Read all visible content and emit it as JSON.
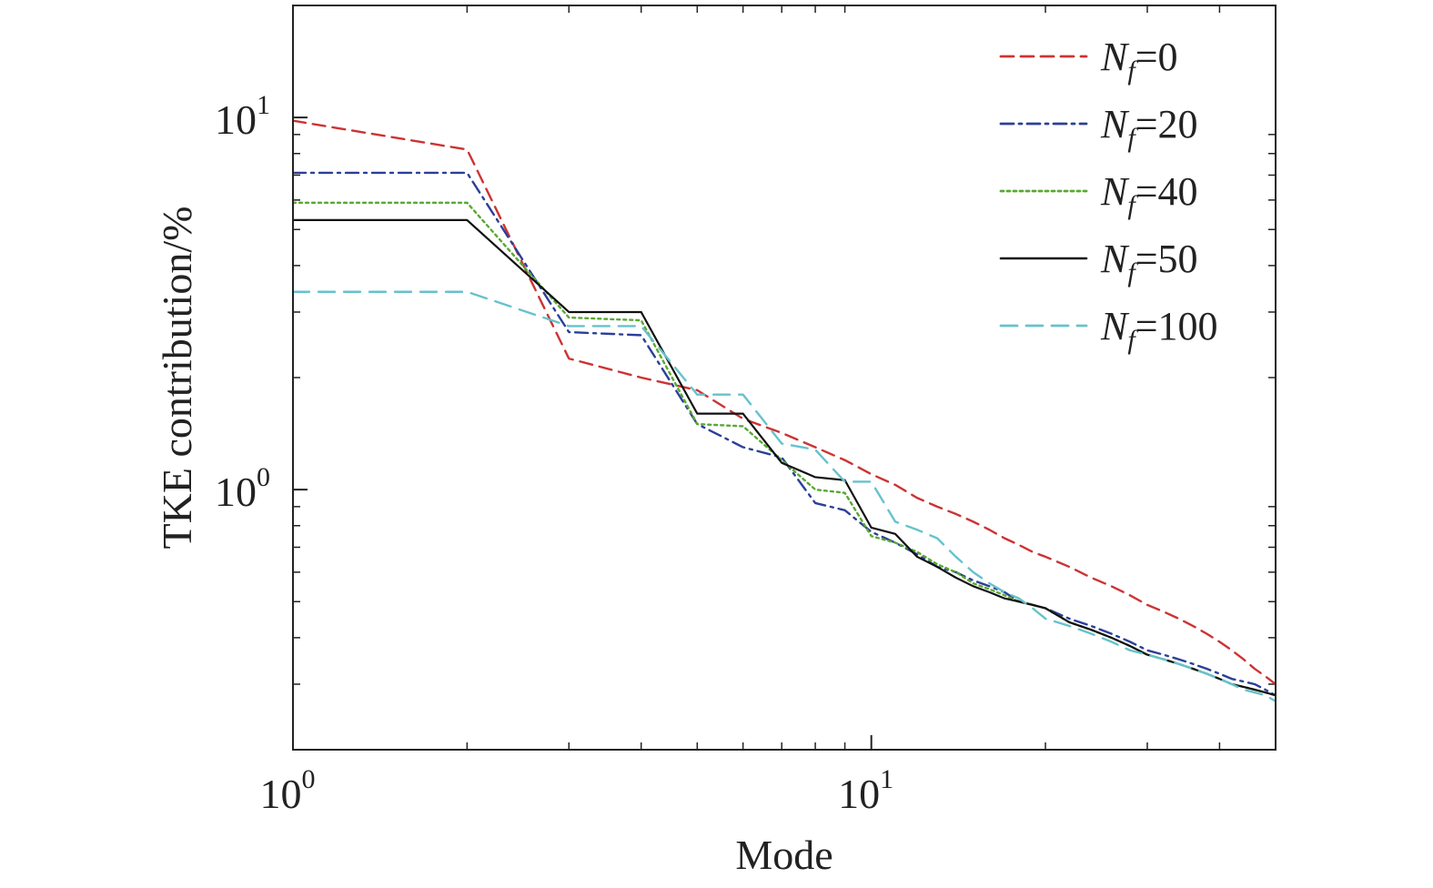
{
  "chart_data": {
    "type": "line",
    "title": "",
    "xlabel": "Mode",
    "ylabel": "TKE contribution/%",
    "xscale": "log",
    "yscale": "log",
    "xlim": [
      1,
      50
    ],
    "ylim": [
      0.2,
      20
    ],
    "x_ticks": [
      {
        "value": 1,
        "base": "10",
        "exp": "0"
      },
      {
        "value": 10,
        "base": "10",
        "exp": "1"
      }
    ],
    "y_ticks": [
      {
        "value": 1,
        "base": "10",
        "exp": "0"
      },
      {
        "value": 10,
        "base": "10",
        "exp": "1"
      }
    ],
    "legend_position": "top-right",
    "series": [
      {
        "name": "N_f=0",
        "label_main": "N",
        "label_sub": "f",
        "label_value": "=0",
        "color": "#cc3333",
        "dash": "dashed",
        "x": [
          1,
          2,
          3,
          4,
          5,
          6,
          7,
          8,
          9,
          10,
          11,
          12,
          13,
          14,
          15,
          16,
          17,
          18,
          19,
          20,
          22,
          24,
          26,
          28,
          30,
          32,
          34,
          36,
          38,
          40,
          42,
          44,
          46,
          48,
          50
        ],
        "values": [
          9.8,
          8.2,
          2.25,
          2.0,
          1.85,
          1.55,
          1.42,
          1.3,
          1.2,
          1.1,
          1.03,
          0.95,
          0.9,
          0.86,
          0.82,
          0.78,
          0.74,
          0.71,
          0.68,
          0.66,
          0.62,
          0.58,
          0.55,
          0.52,
          0.49,
          0.47,
          0.45,
          0.43,
          0.41,
          0.39,
          0.37,
          0.35,
          0.33,
          0.315,
          0.3
        ]
      },
      {
        "name": "N_f=20",
        "label_main": "N",
        "label_sub": "f",
        "label_value": "=20",
        "color": "#2b3f99",
        "dash": "dashdot",
        "x": [
          1,
          2,
          3,
          4,
          5,
          6,
          7,
          8,
          9,
          10,
          11,
          12,
          13,
          14,
          15,
          16,
          17,
          18,
          19,
          20,
          22,
          24,
          26,
          28,
          30,
          32,
          34,
          36,
          38,
          40,
          42,
          44,
          46,
          48,
          50
        ],
        "values": [
          7.1,
          7.1,
          2.65,
          2.6,
          1.5,
          1.3,
          1.22,
          0.92,
          0.88,
          0.77,
          0.72,
          0.67,
          0.62,
          0.6,
          0.57,
          0.55,
          0.53,
          0.5,
          0.49,
          0.48,
          0.45,
          0.43,
          0.41,
          0.39,
          0.37,
          0.36,
          0.35,
          0.34,
          0.33,
          0.32,
          0.31,
          0.305,
          0.3,
          0.29,
          0.28
        ]
      },
      {
        "name": "N_f=40",
        "label_main": "N",
        "label_sub": "f",
        "label_value": "=40",
        "color": "#5aa832",
        "dash": "dotted",
        "x": [
          1,
          2,
          3,
          4,
          5,
          6,
          7,
          8,
          9,
          10,
          11,
          12,
          13,
          14,
          15,
          16,
          17,
          18,
          19,
          20,
          22,
          24,
          26,
          28,
          30,
          32,
          34,
          36,
          38,
          40,
          42,
          44,
          46,
          48,
          50
        ],
        "values": [
          5.9,
          5.9,
          2.9,
          2.85,
          1.5,
          1.48,
          1.2,
          1.0,
          0.98,
          0.75,
          0.72,
          0.68,
          0.63,
          0.6,
          0.56,
          0.54,
          0.52,
          0.5,
          0.49,
          0.48,
          0.44,
          0.42,
          0.4,
          0.38,
          0.36,
          0.35,
          0.34,
          0.33,
          0.32,
          0.31,
          0.3,
          0.295,
          0.29,
          0.285,
          0.28
        ]
      },
      {
        "name": "N_f=50",
        "label_main": "N",
        "label_sub": "f",
        "label_value": "=50",
        "color": "#111111",
        "dash": "solid",
        "x": [
          1,
          2,
          3,
          4,
          5,
          6,
          7,
          8,
          9,
          10,
          11,
          12,
          13,
          14,
          15,
          16,
          17,
          18,
          19,
          20,
          22,
          24,
          26,
          28,
          30,
          32,
          34,
          36,
          38,
          40,
          42,
          44,
          46,
          48,
          50
        ],
        "values": [
          5.3,
          5.3,
          3.0,
          3.0,
          1.6,
          1.6,
          1.18,
          1.08,
          1.06,
          0.79,
          0.76,
          0.66,
          0.62,
          0.58,
          0.55,
          0.53,
          0.51,
          0.5,
          0.49,
          0.48,
          0.44,
          0.42,
          0.4,
          0.38,
          0.36,
          0.35,
          0.34,
          0.33,
          0.32,
          0.31,
          0.3,
          0.295,
          0.29,
          0.285,
          0.28
        ]
      },
      {
        "name": "N_f=100",
        "label_main": "N",
        "label_sub": "f",
        "label_value": "=100",
        "color": "#66c2cc",
        "dash": "longdash",
        "x": [
          1,
          2,
          3,
          4,
          5,
          6,
          7,
          8,
          9,
          10,
          11,
          12,
          13,
          14,
          15,
          16,
          17,
          18,
          19,
          20,
          22,
          24,
          26,
          28,
          30,
          32,
          34,
          36,
          38,
          40,
          42,
          44,
          46,
          48,
          50
        ],
        "values": [
          3.4,
          3.4,
          2.75,
          2.75,
          1.8,
          1.8,
          1.33,
          1.28,
          1.05,
          1.05,
          0.82,
          0.78,
          0.74,
          0.66,
          0.6,
          0.56,
          0.53,
          0.51,
          0.48,
          0.45,
          0.43,
          0.41,
          0.39,
          0.37,
          0.36,
          0.35,
          0.34,
          0.33,
          0.32,
          0.31,
          0.3,
          0.29,
          0.285,
          0.28,
          0.27
        ]
      }
    ]
  }
}
